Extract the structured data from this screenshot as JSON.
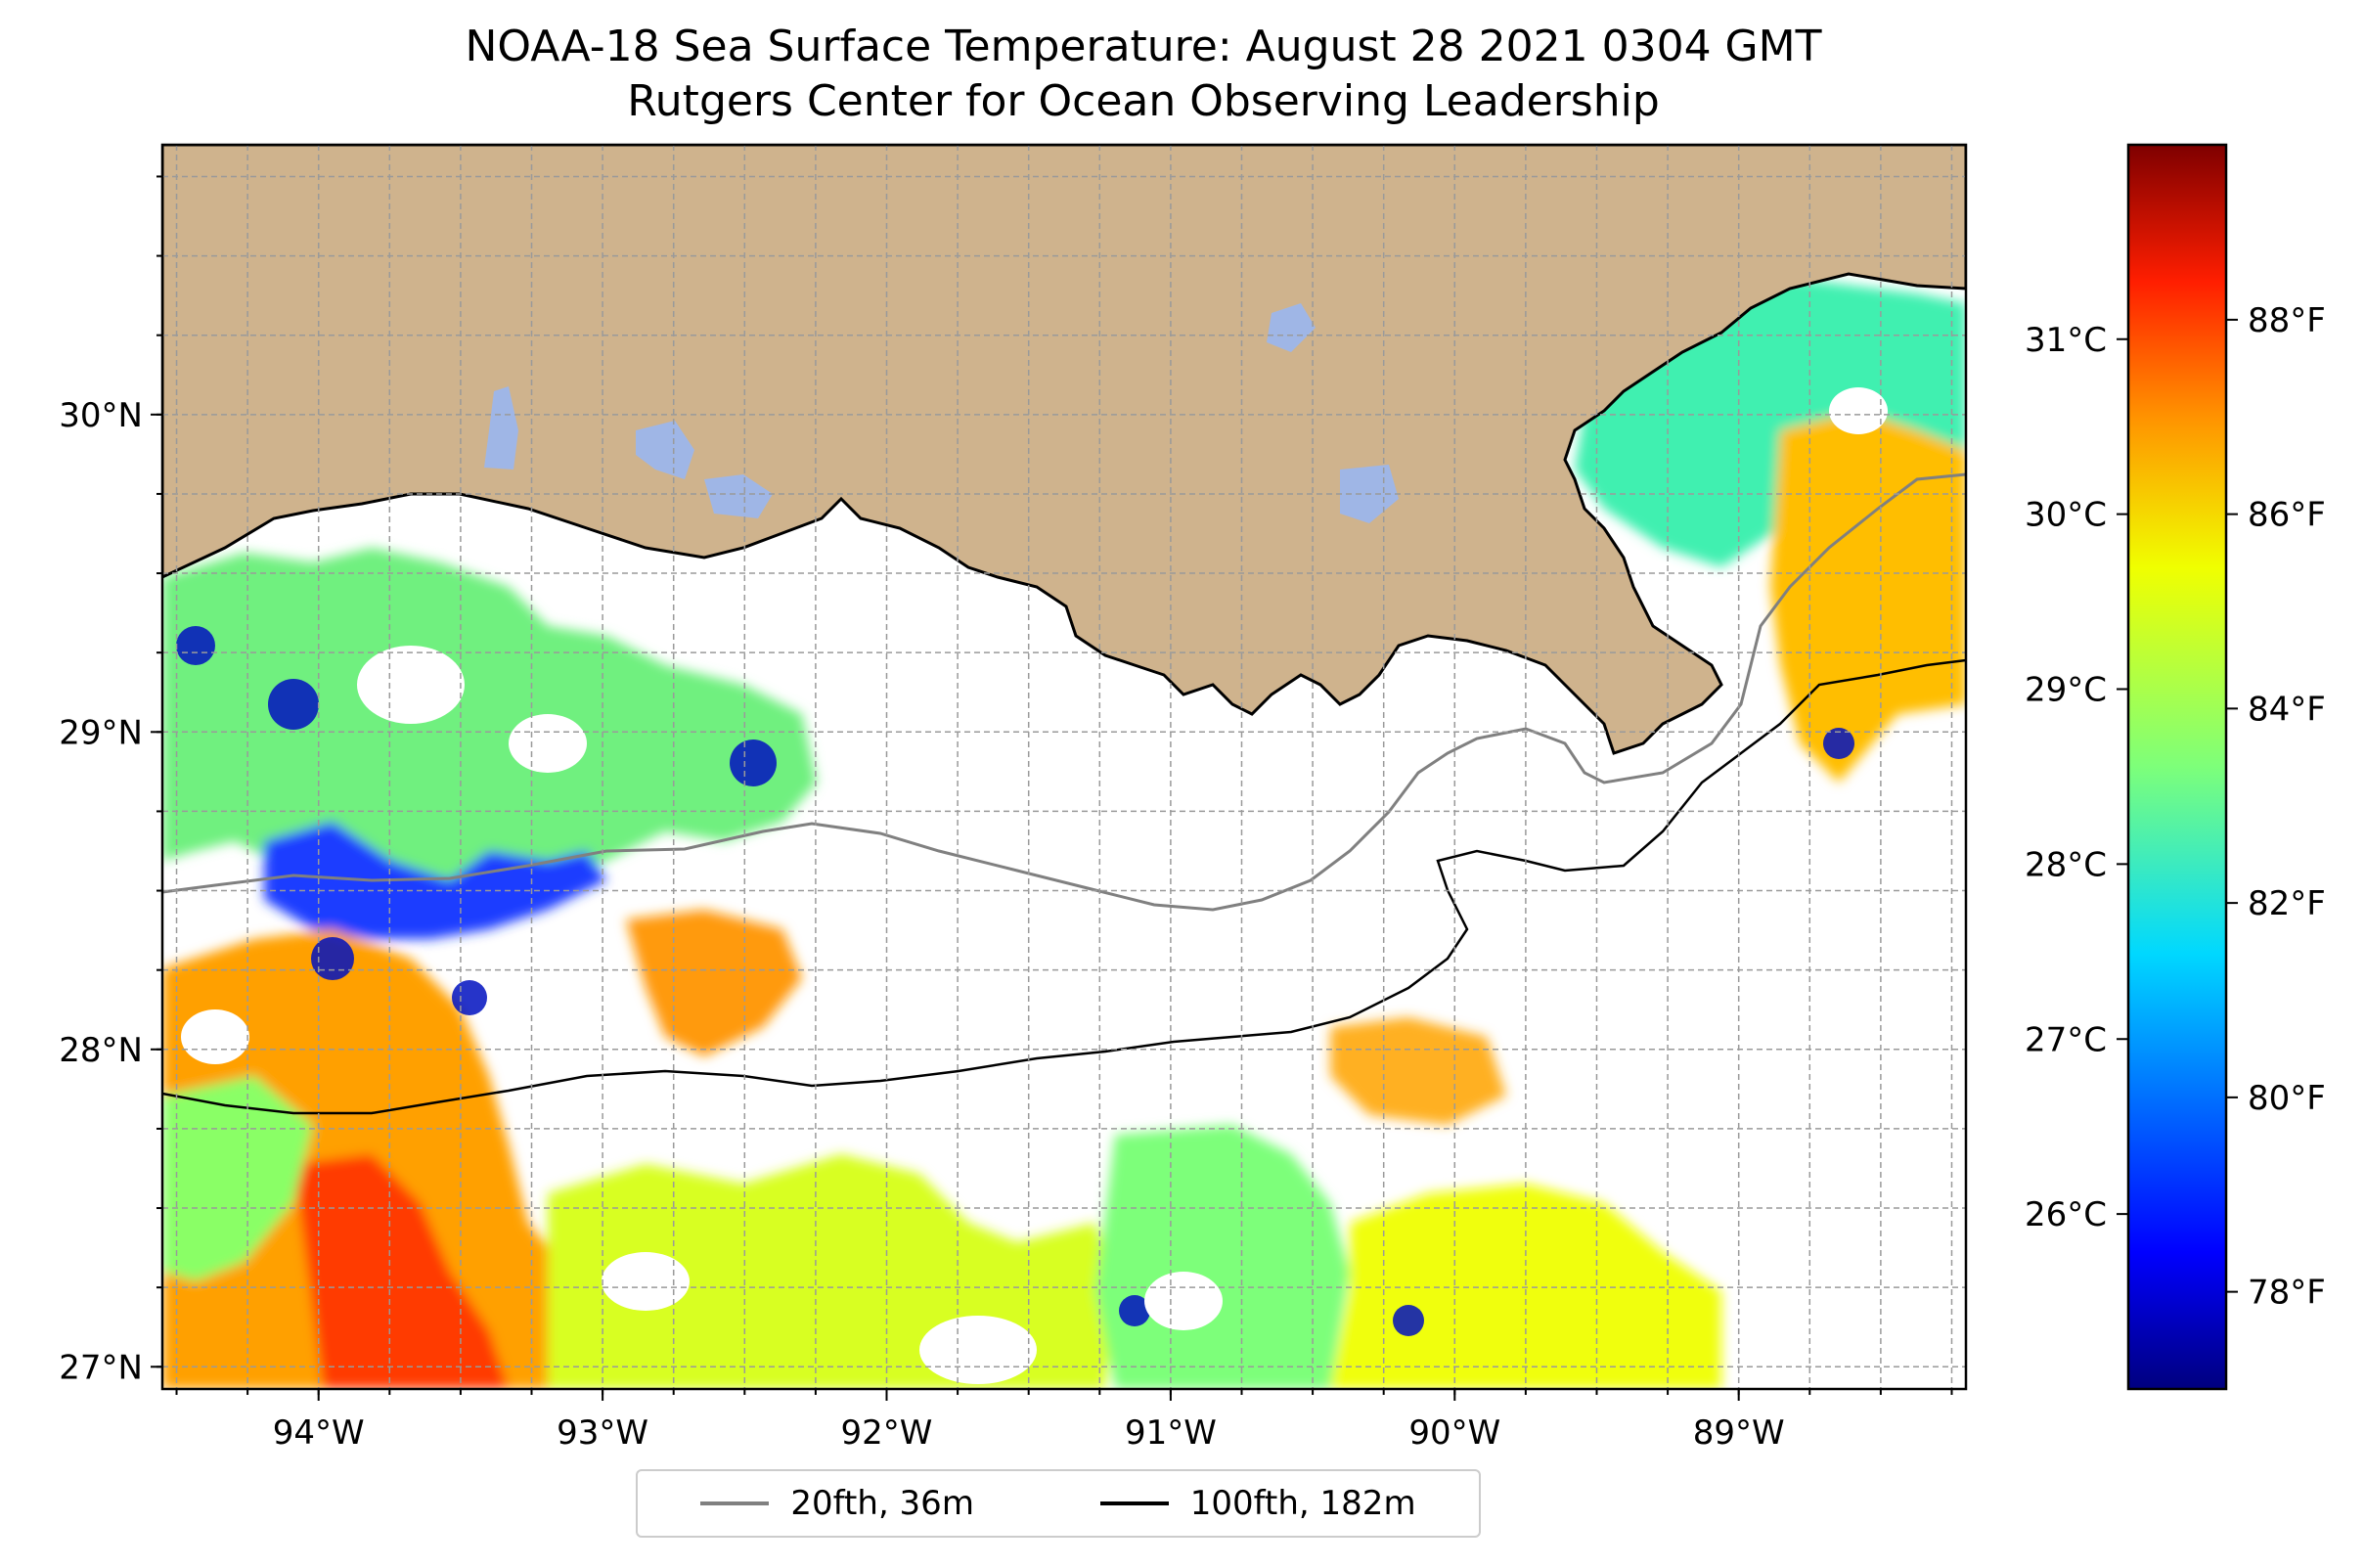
{
  "title": {
    "line1": "NOAA-18 Sea Surface Temperature: August 28 2021 0304 GMT",
    "line2": "Rutgers Center for Ocean Observing Leadership"
  },
  "map": {
    "lon_range": [
      -94.55,
      -88.2
    ],
    "lat_range": [
      26.93,
      30.85
    ],
    "lon_ticks": [
      {
        "value": -94,
        "label": "94°W"
      },
      {
        "value": -93,
        "label": "93°W"
      },
      {
        "value": -92,
        "label": "92°W"
      },
      {
        "value": -91,
        "label": "91°W"
      },
      {
        "value": -90,
        "label": "90°W"
      },
      {
        "value": -89,
        "label": "89°W"
      }
    ],
    "lat_ticks": [
      {
        "value": 27,
        "label": "27°N"
      },
      {
        "value": 28,
        "label": "28°N"
      },
      {
        "value": 29,
        "label": "29°N"
      },
      {
        "value": 30,
        "label": "30°N"
      }
    ],
    "grid": true,
    "land_color": "#cfb38d",
    "lake_color": "#9fb6e6",
    "water_color": "#ffffff"
  },
  "colorbar": {
    "colormap": "jet",
    "range_f": [
      77.0,
      89.8
    ],
    "f_ticks": [
      {
        "value": 78,
        "label": "78°F"
      },
      {
        "value": 80,
        "label": "80°F"
      },
      {
        "value": 82,
        "label": "82°F"
      },
      {
        "value": 84,
        "label": "84°F"
      },
      {
        "value": 86,
        "label": "86°F"
      },
      {
        "value": 88,
        "label": "88°F"
      }
    ],
    "c_ticks": [
      {
        "value": 26,
        "label": "26°C"
      },
      {
        "value": 27,
        "label": "27°C"
      },
      {
        "value": 28,
        "label": "28°C"
      },
      {
        "value": 29,
        "label": "29°C"
      },
      {
        "value": 30,
        "label": "30°C"
      },
      {
        "value": 31,
        "label": "31°C"
      }
    ]
  },
  "legend": {
    "placement": "bottom-center",
    "items": [
      {
        "label": "20fth, 36m",
        "color": "#808080"
      },
      {
        "label": "100fth, 182m",
        "color": "#000000"
      }
    ]
  }
}
